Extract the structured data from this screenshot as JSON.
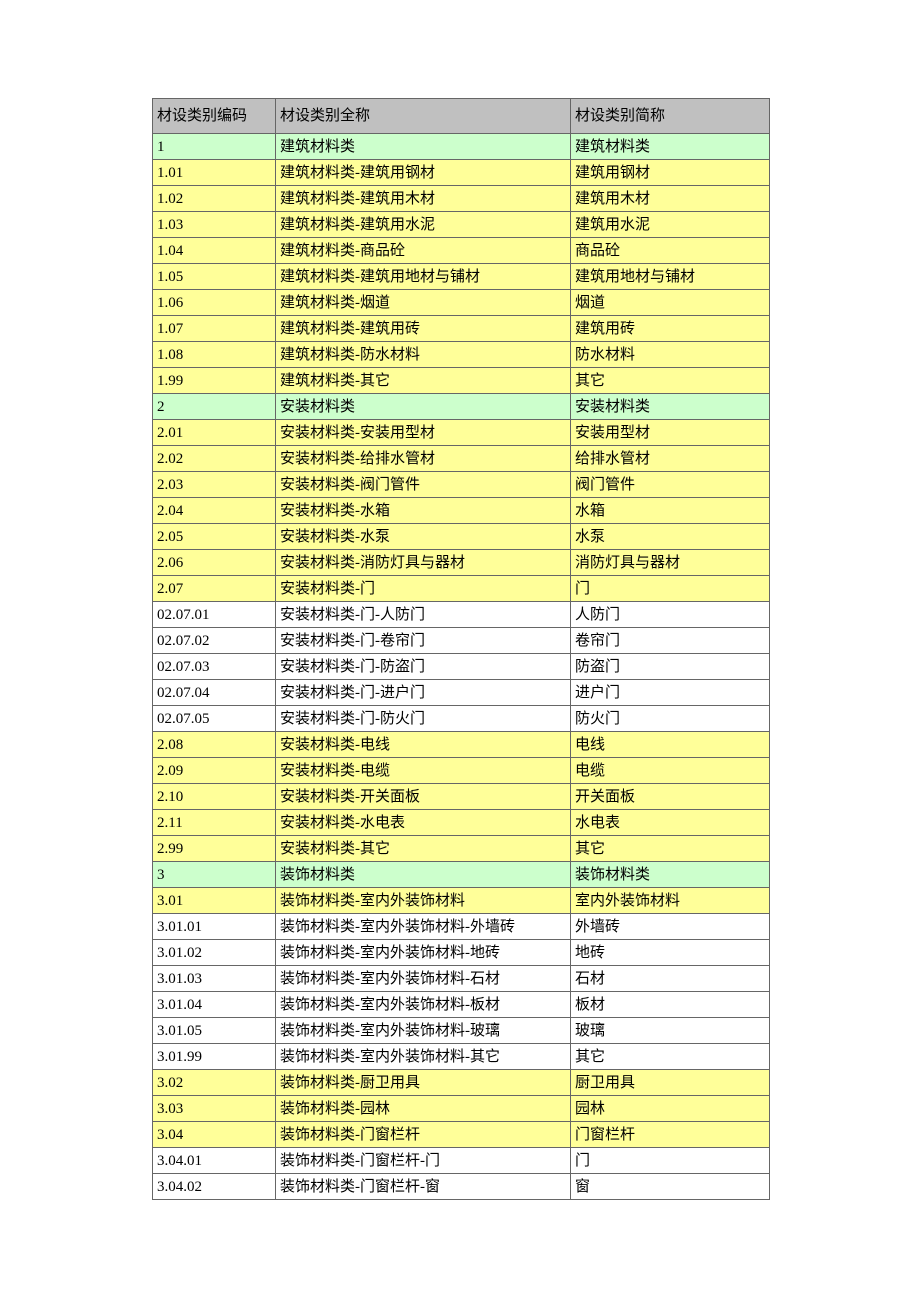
{
  "table": {
    "headers": [
      "材设类别编码",
      "材设类别全称",
      "材设类别简称"
    ],
    "colors": {
      "header_bg": "#c0c0c0",
      "category_row_bg": "#ccffcc",
      "sub_row_bg": "#ffff99",
      "item_row_bg": "#ffffff",
      "border": "#666666",
      "text": "#000000",
      "page_bg": "#ffffff"
    },
    "rows": [
      {
        "code": "1",
        "full_name": "建筑材料类",
        "short_name": "建筑材料类",
        "level": "category"
      },
      {
        "code": "1.01",
        "full_name": "建筑材料类-建筑用钢材",
        "short_name": "建筑用钢材",
        "level": "sub"
      },
      {
        "code": "1.02",
        "full_name": "建筑材料类-建筑用木材",
        "short_name": "建筑用木材",
        "level": "sub"
      },
      {
        "code": "1.03",
        "full_name": "建筑材料类-建筑用水泥",
        "short_name": "建筑用水泥",
        "level": "sub"
      },
      {
        "code": "1.04",
        "full_name": "建筑材料类-商品砼",
        "short_name": "商品砼",
        "level": "sub"
      },
      {
        "code": "1.05",
        "full_name": "建筑材料类-建筑用地材与铺材",
        "short_name": "建筑用地材与铺材",
        "level": "sub"
      },
      {
        "code": "1.06",
        "full_name": "建筑材料类-烟道",
        "short_name": "烟道",
        "level": "sub"
      },
      {
        "code": "1.07",
        "full_name": "建筑材料类-建筑用砖",
        "short_name": "建筑用砖",
        "level": "sub"
      },
      {
        "code": "1.08",
        "full_name": "建筑材料类-防水材料",
        "short_name": "防水材料",
        "level": "sub"
      },
      {
        "code": "1.99",
        "full_name": "建筑材料类-其它",
        "short_name": "其它",
        "level": "sub"
      },
      {
        "code": "2",
        "full_name": "安装材料类",
        "short_name": "安装材料类",
        "level": "category"
      },
      {
        "code": "2.01",
        "full_name": "安装材料类-安装用型材",
        "short_name": "安装用型材",
        "level": "sub"
      },
      {
        "code": "2.02",
        "full_name": "安装材料类-给排水管材",
        "short_name": "给排水管材",
        "level": "sub"
      },
      {
        "code": "2.03",
        "full_name": "安装材料类-阀门管件",
        "short_name": "阀门管件",
        "level": "sub"
      },
      {
        "code": "2.04",
        "full_name": "安装材料类-水箱",
        "short_name": "水箱",
        "level": "sub"
      },
      {
        "code": "2.05",
        "full_name": "安装材料类-水泵",
        "short_name": "水泵",
        "level": "sub"
      },
      {
        "code": "2.06",
        "full_name": "安装材料类-消防灯具与器材",
        "short_name": "消防灯具与器材",
        "level": "sub"
      },
      {
        "code": "2.07",
        "full_name": "安装材料类-门",
        "short_name": "门",
        "level": "sub"
      },
      {
        "code": "02.07.01",
        "full_name": "安装材料类-门-人防门",
        "short_name": "人防门",
        "level": "item"
      },
      {
        "code": "02.07.02",
        "full_name": "安装材料类-门-卷帘门",
        "short_name": "卷帘门",
        "level": "item"
      },
      {
        "code": "02.07.03",
        "full_name": "安装材料类-门-防盗门",
        "short_name": "防盗门",
        "level": "item"
      },
      {
        "code": "02.07.04",
        "full_name": "安装材料类-门-进户门",
        "short_name": "进户门",
        "level": "item"
      },
      {
        "code": "02.07.05",
        "full_name": "安装材料类-门-防火门",
        "short_name": "防火门",
        "level": "item"
      },
      {
        "code": "2.08",
        "full_name": "安装材料类-电线",
        "short_name": "电线",
        "level": "sub"
      },
      {
        "code": "2.09",
        "full_name": "安装材料类-电缆",
        "short_name": "电缆",
        "level": "sub"
      },
      {
        "code": "2.10",
        "full_name": "安装材料类-开关面板",
        "short_name": "开关面板",
        "level": "sub"
      },
      {
        "code": "2.11",
        "full_name": "安装材料类-水电表",
        "short_name": "水电表",
        "level": "sub"
      },
      {
        "code": "2.99",
        "full_name": "安装材料类-其它",
        "short_name": "其它",
        "level": "sub"
      },
      {
        "code": "3",
        "full_name": "装饰材料类",
        "short_name": "装饰材料类",
        "level": "category"
      },
      {
        "code": "3.01",
        "full_name": "装饰材料类-室内外装饰材料",
        "short_name": "室内外装饰材料",
        "level": "sub"
      },
      {
        "code": "3.01.01",
        "full_name": "装饰材料类-室内外装饰材料-外墙砖",
        "short_name": "外墙砖",
        "level": "item"
      },
      {
        "code": "3.01.02",
        "full_name": "装饰材料类-室内外装饰材料-地砖",
        "short_name": "地砖",
        "level": "item"
      },
      {
        "code": "3.01.03",
        "full_name": "装饰材料类-室内外装饰材料-石材",
        "short_name": "石材",
        "level": "item"
      },
      {
        "code": "3.01.04",
        "full_name": "装饰材料类-室内外装饰材料-板材",
        "short_name": "板材",
        "level": "item"
      },
      {
        "code": "3.01.05",
        "full_name": "装饰材料类-室内外装饰材料-玻璃",
        "short_name": "玻璃",
        "level": "item"
      },
      {
        "code": "3.01.99",
        "full_name": "装饰材料类-室内外装饰材料-其它",
        "short_name": "其它",
        "level": "item"
      },
      {
        "code": "3.02",
        "full_name": "装饰材料类-厨卫用具",
        "short_name": "厨卫用具",
        "level": "sub"
      },
      {
        "code": "3.03",
        "full_name": "装饰材料类-园林",
        "short_name": "园林",
        "level": "sub"
      },
      {
        "code": "3.04",
        "full_name": "装饰材料类-门窗栏杆",
        "short_name": "门窗栏杆",
        "level": "sub"
      },
      {
        "code": "3.04.01",
        "full_name": "装饰材料类-门窗栏杆-门",
        "short_name": "门",
        "level": "item"
      },
      {
        "code": "3.04.02",
        "full_name": "装饰材料类-门窗栏杆-窗",
        "short_name": "窗",
        "level": "item"
      }
    ]
  }
}
